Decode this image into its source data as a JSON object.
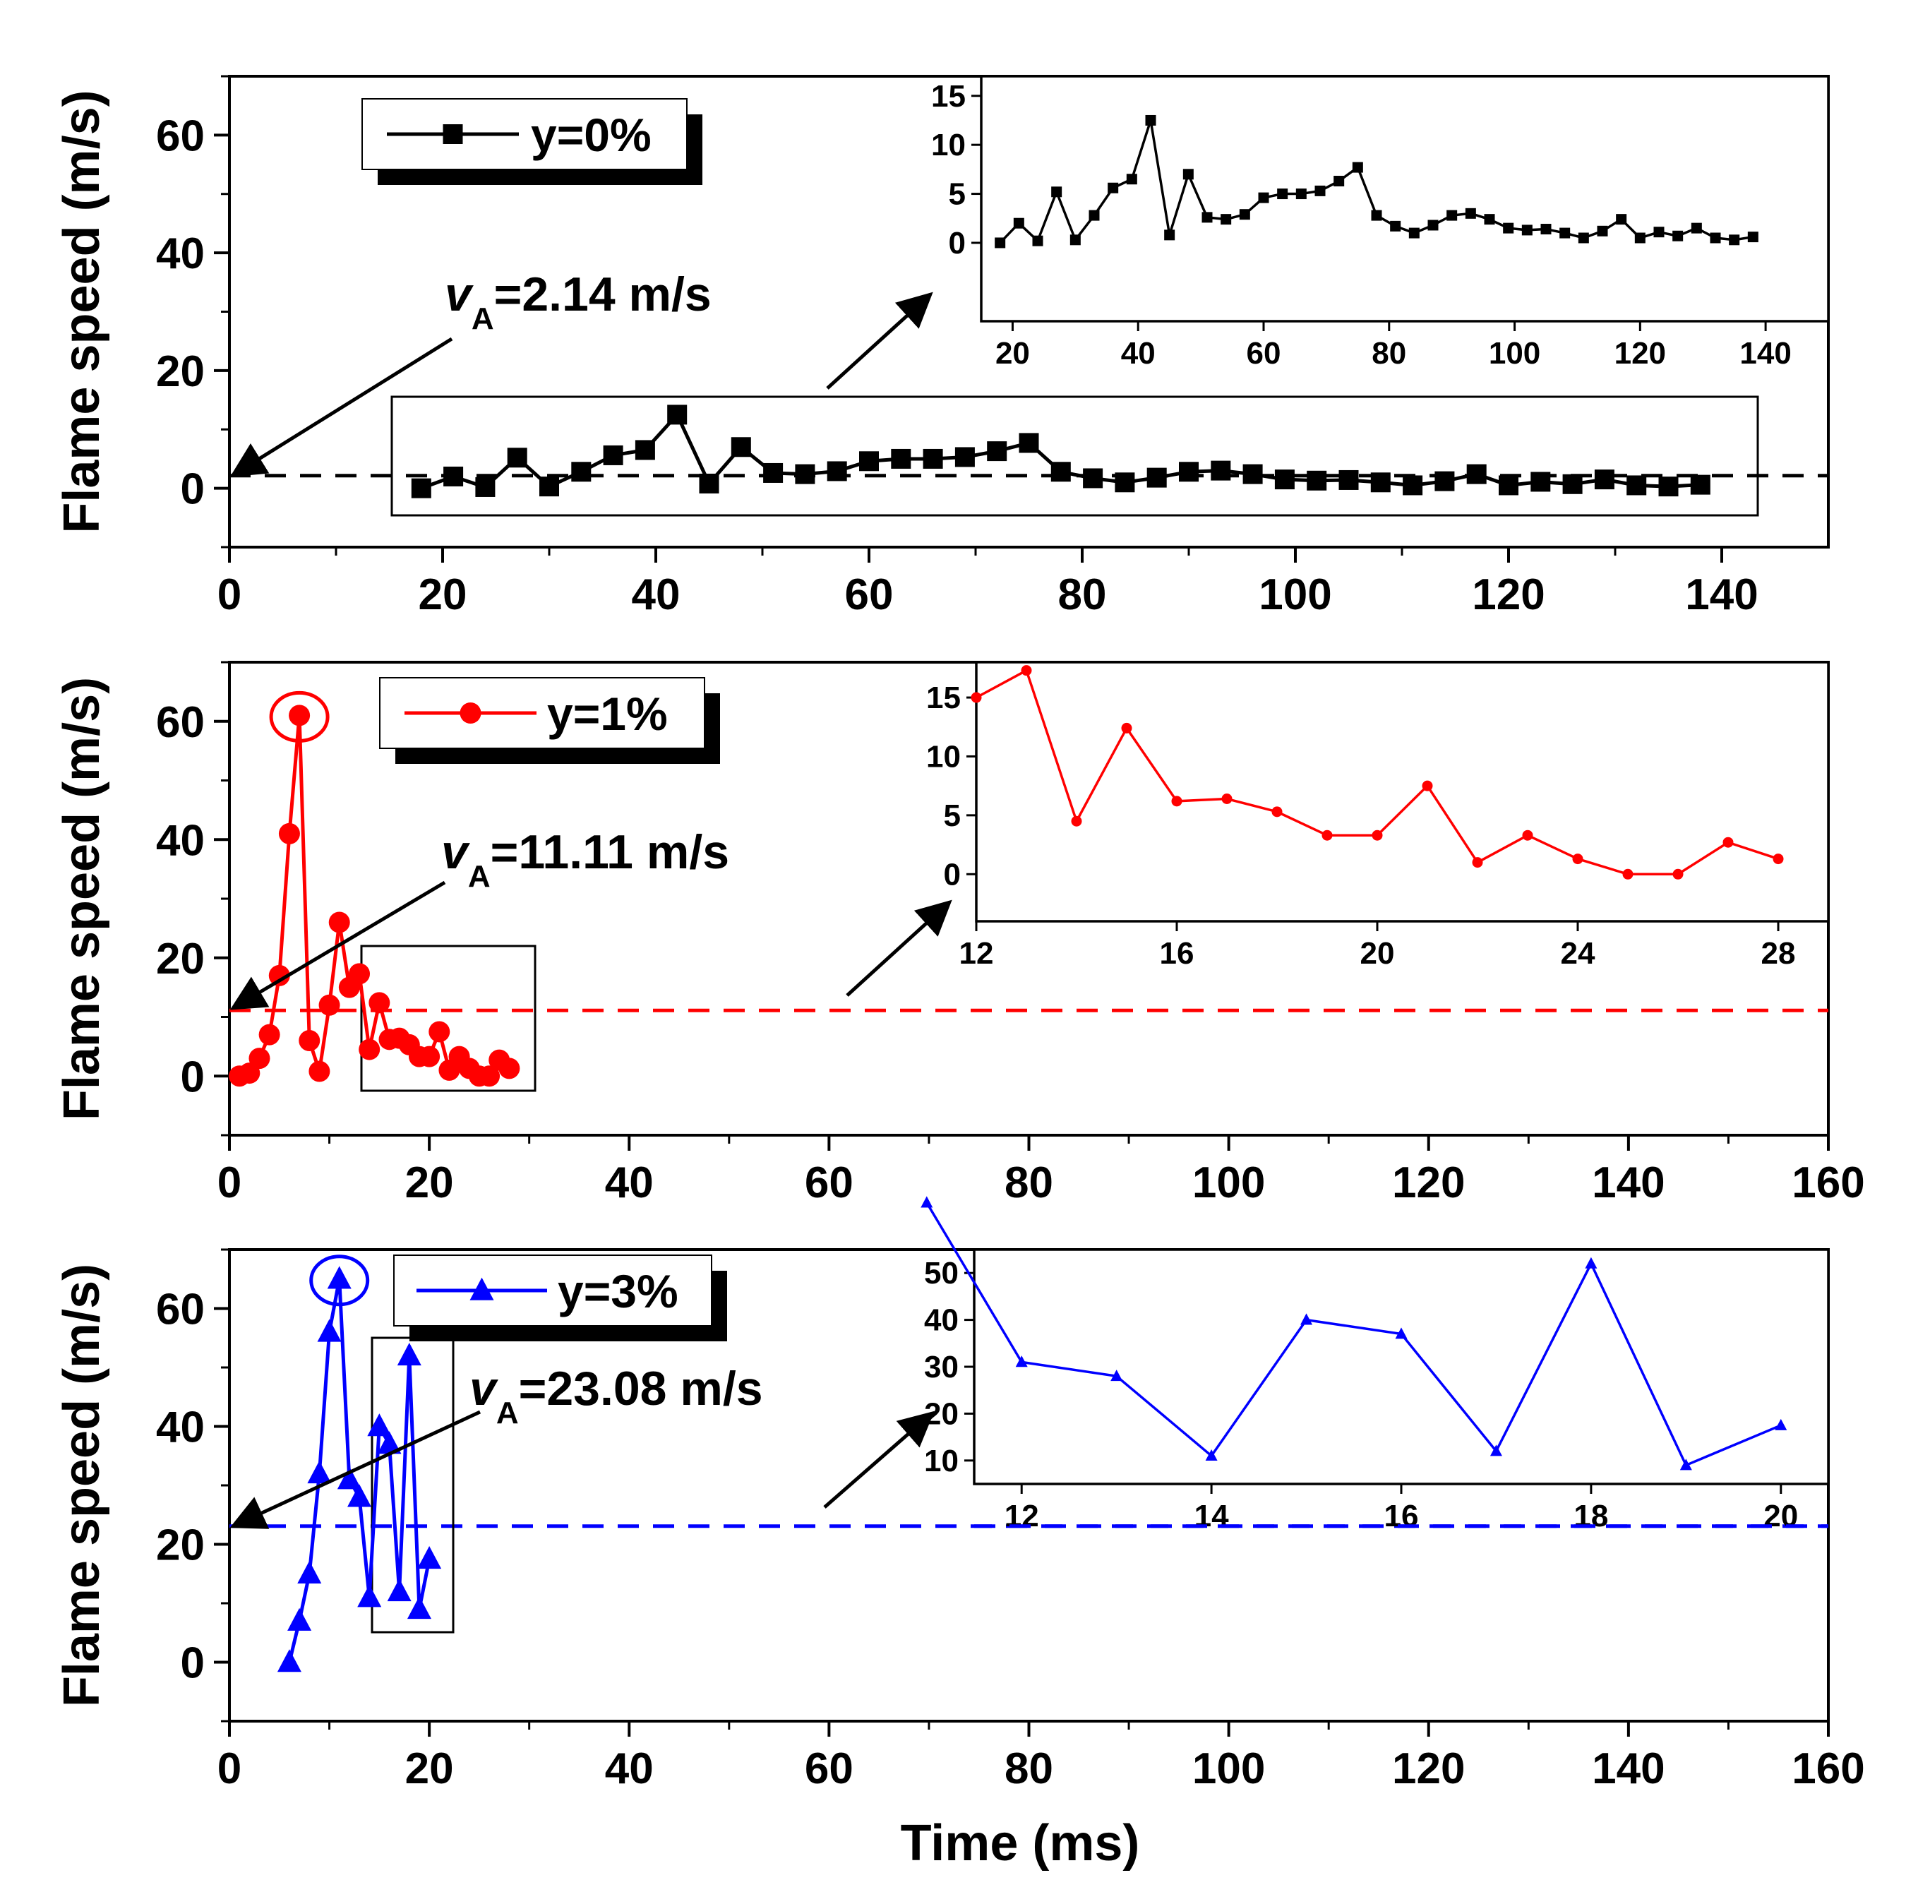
{
  "chart_data": [
    {
      "type": "line",
      "panel": "top",
      "series_name": "y=0%",
      "color": "#000000",
      "marker": "square",
      "xlabel": "",
      "ylabel": "Flame speed (m/s)",
      "xlim": [
        0,
        150
      ],
      "ylim": [
        -10,
        70
      ],
      "xticks": [
        0,
        20,
        40,
        60,
        80,
        100,
        120,
        140
      ],
      "yticks": [
        0,
        20,
        40,
        60
      ],
      "reference_line": {
        "value": 2.14,
        "label_symbol": "v",
        "label_sub": "A",
        "label_rest": "=2.14 m/s"
      },
      "x": [
        18,
        21,
        24,
        27,
        30,
        33,
        36,
        39,
        42,
        45,
        48,
        51,
        54,
        57,
        60,
        63,
        66,
        69,
        72,
        75,
        78,
        81,
        84,
        87,
        90,
        93,
        96,
        99,
        102,
        105,
        108,
        111,
        114,
        117,
        120,
        123,
        126,
        129,
        132,
        135,
        138
      ],
      "values": [
        0,
        2,
        0.2,
        5.2,
        0.3,
        2.8,
        5.6,
        6.5,
        12.5,
        0.8,
        7,
        2.6,
        2.4,
        2.9,
        4.6,
        5,
        5,
        5.3,
        6.3,
        7.7,
        2.8,
        1.7,
        1,
        1.8,
        2.8,
        3,
        2.4,
        1.5,
        1.3,
        1.4,
        1,
        0.5,
        1.2,
        2.4,
        0.5,
        1.1,
        0.7,
        1.5,
        0.5,
        0.3,
        0.6
      ],
      "inset": {
        "xlim": [
          15,
          150
        ],
        "ylim": [
          -8,
          17
        ],
        "xticks": [
          20,
          40,
          60,
          80,
          100,
          120,
          140
        ],
        "yticks": [
          0,
          5,
          10,
          15
        ]
      }
    },
    {
      "type": "line",
      "panel": "middle",
      "series_name": "y=1%",
      "color": "#ff0000",
      "marker": "circle",
      "xlabel": "",
      "ylabel": "Flame speed (m/s)",
      "xlim": [
        0,
        160
      ],
      "ylim": [
        -10,
        70
      ],
      "xticks": [
        0,
        20,
        40,
        60,
        80,
        100,
        120,
        140,
        160
      ],
      "yticks": [
        0,
        20,
        40,
        60
      ],
      "reference_line": {
        "value": 11.11,
        "label_symbol": "v",
        "label_sub": "A",
        "label_rest": "=11.11 m/s"
      },
      "x": [
        1,
        2,
        3,
        4,
        5,
        6,
        7,
        8,
        9,
        10,
        11,
        12,
        13,
        14,
        15,
        16,
        17,
        18,
        19,
        20,
        21,
        22,
        23,
        24,
        25,
        26,
        27,
        28
      ],
      "values": [
        0,
        0.5,
        3,
        7,
        17,
        41,
        61,
        6,
        0.8,
        12,
        26,
        15,
        17.3,
        4.5,
        12.4,
        6.2,
        6.4,
        5.3,
        3.3,
        3.3,
        7.5,
        1,
        3.3,
        1.3,
        0,
        0,
        2.7,
        1.3
      ],
      "inset": {
        "xlim": [
          12,
          29
        ],
        "ylim": [
          -4,
          18
        ],
        "xticks": [
          12,
          16,
          20,
          24,
          28
        ],
        "yticks": [
          0,
          5,
          10,
          15
        ]
      }
    },
    {
      "type": "line",
      "panel": "bottom",
      "series_name": "y=3%",
      "color": "#0000ff",
      "marker": "triangle",
      "xlabel": "Time (ms)",
      "ylabel": "Flame speed (m/s)",
      "xlim": [
        0,
        160
      ],
      "ylim": [
        -10,
        70
      ],
      "xticks": [
        0,
        20,
        40,
        60,
        80,
        100,
        120,
        140,
        160
      ],
      "yticks": [
        0,
        20,
        40,
        60
      ],
      "reference_line": {
        "value": 23.08,
        "label_symbol": "v",
        "label_sub": "A",
        "label_rest": "=23.08 m/s"
      },
      "x": [
        6,
        7,
        8,
        9,
        10,
        11,
        12,
        13,
        14,
        15,
        16,
        17,
        18,
        19,
        20
      ],
      "values": [
        0,
        7,
        15,
        32,
        56,
        65,
        31,
        28,
        11,
        40,
        37,
        12,
        52,
        9,
        17.5
      ],
      "inset": {
        "xlim": [
          11.5,
          20.5
        ],
        "ylim": [
          5,
          55
        ],
        "xticks": [
          12,
          14,
          16,
          18,
          20
        ],
        "yticks": [
          10,
          20,
          30,
          40,
          50
        ]
      }
    }
  ],
  "colors": {
    "axis": "#000000",
    "background": "#ffffff"
  }
}
